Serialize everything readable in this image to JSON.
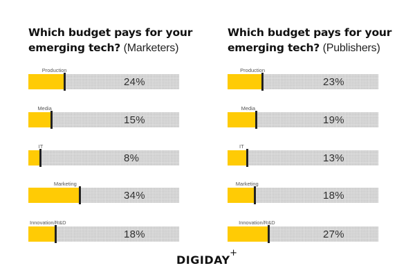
{
  "chart_data": [
    {
      "type": "bar",
      "orientation": "horizontal",
      "title_bold": "Which budget pays for your emerging tech?",
      "title_suffix": "(Marketers)",
      "categories": [
        "Production",
        "Media",
        "IT",
        "Marketing",
        "Innovation/R&D"
      ],
      "values": [
        24,
        15,
        8,
        34,
        18
      ],
      "value_labels": [
        "24%",
        "15%",
        "8%",
        "34%",
        "18%"
      ],
      "xlim": [
        0,
        100
      ],
      "unit": "%",
      "fill_color": "#ffcb05",
      "track_color": "#e6e6e6",
      "marker_color": "#222222"
    },
    {
      "type": "bar",
      "orientation": "horizontal",
      "title_bold": "Which budget pays for your emerging tech?",
      "title_suffix": "(Publishers)",
      "categories": [
        "Production",
        "Media",
        "IT",
        "Marketing",
        "Innovation/R&D"
      ],
      "values": [
        23,
        19,
        13,
        18,
        27
      ],
      "value_labels": [
        "23%",
        "19%",
        "13%",
        "18%",
        "27%"
      ],
      "xlim": [
        0,
        100
      ],
      "unit": "%",
      "fill_color": "#ffcb05",
      "track_color": "#e6e6e6",
      "marker_color": "#222222"
    }
  ],
  "branding": {
    "logo_text": "DIGIDAY",
    "logo_superscript": "+"
  }
}
